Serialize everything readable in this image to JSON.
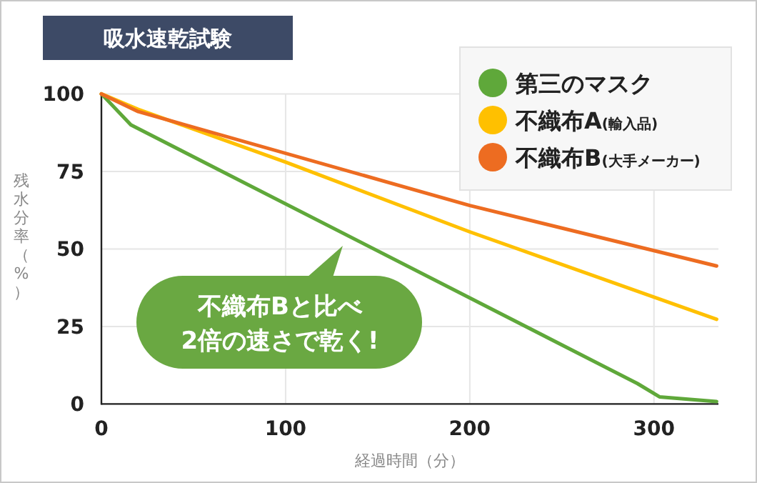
{
  "chart_data": {
    "type": "line",
    "title": "吸水速乾試験",
    "xlabel": "経過時間（分）",
    "ylabel": "残水分率（%）",
    "xlim": [
      0,
      335
    ],
    "ylim": [
      0,
      100
    ],
    "xticks": [
      0,
      100,
      200,
      300
    ],
    "yticks": [
      0,
      25,
      50,
      75,
      100
    ],
    "grid": true,
    "legend": "top right",
    "line_style": "solid",
    "series": [
      {
        "name": "第三のマスク",
        "color": "#5fa83a",
        "x": [
          0,
          16,
          291,
          303,
          334
        ],
        "values": [
          100,
          90,
          6.6,
          2.3,
          0.8
        ]
      },
      {
        "name": "不織布A(輸入品)",
        "color": "#ffc000",
        "x": [
          0,
          20,
          100,
          200,
          334
        ],
        "values": [
          100,
          95,
          78,
          55.5,
          27.3
        ]
      },
      {
        "name": "不織布B(大手メーカー)",
        "color": "#ed6c21",
        "x": [
          0,
          20,
          200,
          334
        ],
        "values": [
          100,
          94.3,
          64,
          44.5
        ]
      }
    ],
    "annotations": [
      "不織布Bと比べ",
      "2倍の速さで乾く!"
    ]
  }
}
